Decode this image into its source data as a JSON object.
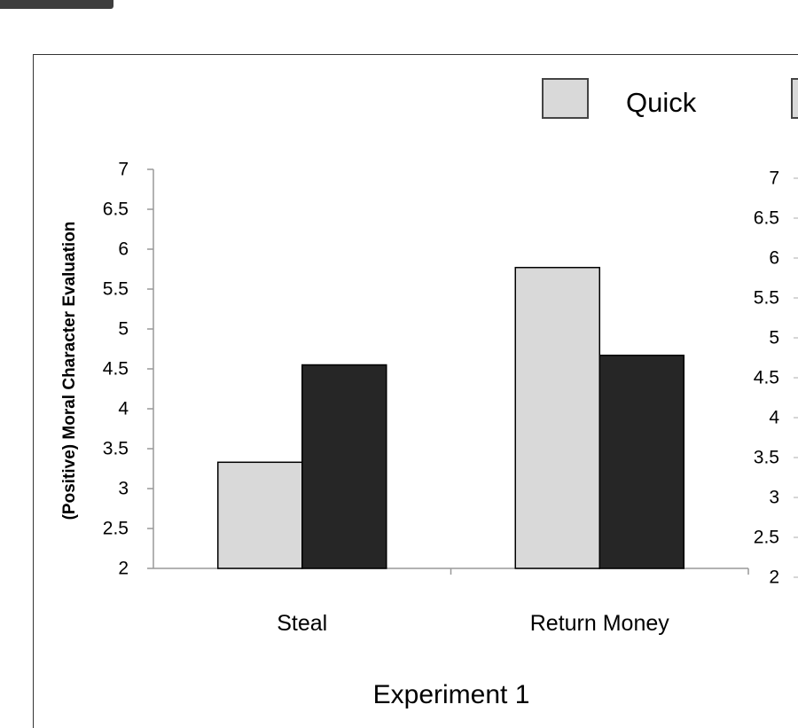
{
  "chart_data": {
    "type": "bar",
    "title": "Experiment 1",
    "ylabel": "(Positive) Moral Character Evaluation",
    "xlabel": "",
    "categories": [
      "Steal",
      "Return Money"
    ],
    "series": [
      {
        "name": "Quick",
        "values": [
          3.33,
          5.77
        ],
        "color": "#d9d9d9"
      },
      {
        "values": [
          4.55,
          4.67
        ],
        "color": "#262626"
      }
    ],
    "ylim": [
      2,
      7
    ],
    "yticks": [
      "2",
      "2.5",
      "3",
      "3.5",
      "4",
      "4.5",
      "5",
      "5.5",
      "6",
      "6.5",
      "7"
    ],
    "second_axis_ticks": [
      "2",
      "2.5",
      "3",
      "3.5",
      "4",
      "4.5",
      "5",
      "5.5",
      "6",
      "6.5",
      "7"
    ],
    "legend_position": "top-right",
    "grid": false
  }
}
